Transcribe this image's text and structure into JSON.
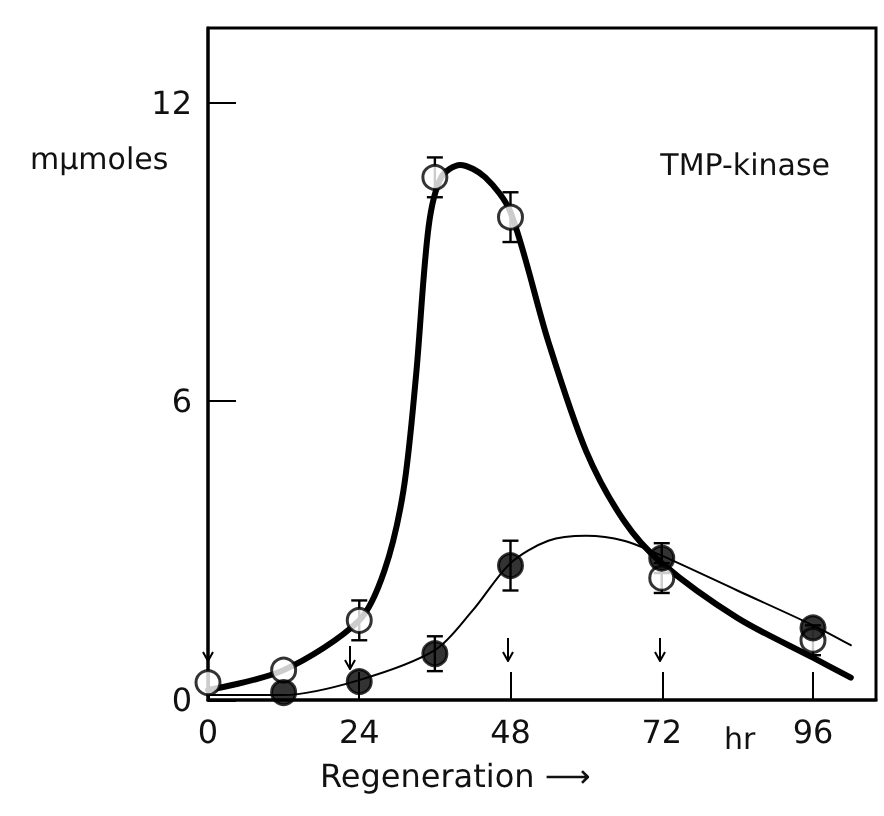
{
  "chart_data": {
    "type": "scatter",
    "title": "TMP-kinase",
    "xlabel": "Regeneration ⟶",
    "ylabel": "mμmoles",
    "xlim": [
      0,
      106
    ],
    "xticks": [
      0,
      24,
      48,
      72,
      96
    ],
    "ylim": [
      0,
      13.5
    ],
    "yticks": [
      0,
      6,
      12
    ],
    "grid": false,
    "series": [
      {
        "marker": "circle",
        "color": "#ffffff",
        "x": [
          0,
          12,
          24,
          36,
          48,
          72,
          96
        ],
        "values": [
          0.35,
          0.6,
          1.6,
          10.5,
          9.7,
          2.45,
          1.2
        ],
        "errors": [
          null,
          null,
          0.4,
          0.4,
          0.5,
          0.3,
          0.3
        ]
      },
      {
        "marker": "circle",
        "color": "#000000",
        "x": [
          12,
          24,
          36,
          48,
          72,
          96
        ],
        "values": [
          0.15,
          0.37,
          0.93,
          2.7,
          2.85,
          1.45
        ],
        "errors": [
          null,
          null,
          0.35,
          0.5,
          0.3,
          null
        ]
      },
      {
        "type": "line",
        "marker": "none",
        "color": "#000000",
        "x": [
          0,
          12,
          24,
          28,
          31,
          33,
          35,
          37,
          40,
          44,
          48,
          54,
          60,
          66,
          72,
          84,
          96,
          102
        ],
        "values": [
          0.2,
          0.6,
          1.6,
          2.6,
          4.2,
          6.5,
          9.5,
          10.5,
          10.75,
          10.5,
          9.8,
          7.2,
          5,
          3.6,
          2.75,
          1.65,
          0.85,
          0.45
        ]
      },
      {
        "type": "line",
        "marker": "none",
        "color": "#000000",
        "x": [
          0,
          12,
          24,
          36,
          42,
          48,
          54,
          60,
          66,
          72,
          84,
          96,
          102
        ],
        "values": [
          0.1,
          0.1,
          0.4,
          1.0,
          1.8,
          2.75,
          3.2,
          3.3,
          3.2,
          2.9,
          2.2,
          1.5,
          1.1
        ]
      }
    ],
    "annotations": [
      "hr"
    ]
  }
}
